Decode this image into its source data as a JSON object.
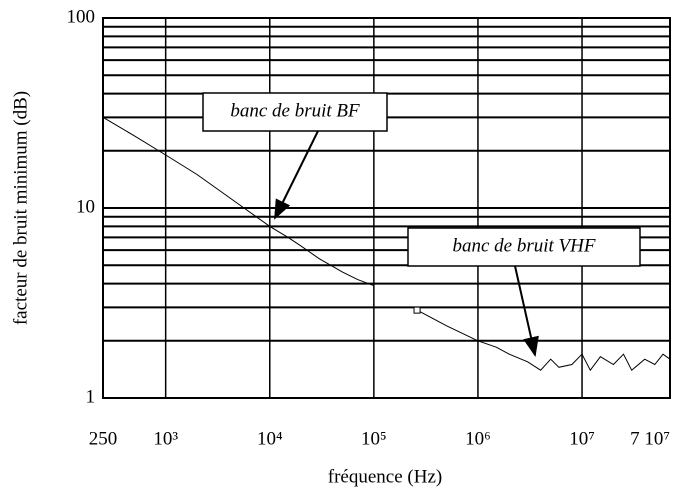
{
  "chart_data": {
    "type": "line",
    "xlabel": "fréquence (Hz)",
    "ylabel": "facteur de bruit minimum (dB)",
    "log_x": true,
    "log_y": true,
    "grid": true,
    "minor_grid_y": true,
    "xlim": [
      250,
      70000000
    ],
    "ylim": [
      1,
      100
    ],
    "xticks": [
      250,
      {
        "value": 1000,
        "label": "10³"
      },
      {
        "value": 10000,
        "label": "10⁴"
      },
      {
        "value": 100000,
        "label": "10⁵"
      },
      {
        "value": 1000000,
        "label": "10⁶"
      },
      {
        "value": 10000000,
        "label": "10⁷"
      },
      {
        "value": 70000000,
        "label": "7 10⁷"
      }
    ],
    "yticks": [
      1,
      10,
      100
    ],
    "series": [
      {
        "name": "banc de bruit BF",
        "color": "#000000",
        "x": [
          250,
          500,
          1000,
          2000,
          5000,
          10000,
          15000,
          20000,
          30000,
          50000,
          70000,
          100000
        ],
        "values": [
          30,
          24,
          19,
          15,
          10.5,
          8,
          7,
          6.3,
          5.4,
          4.6,
          4.2,
          3.9
        ]
      },
      {
        "name": "banc de bruit VHF",
        "color": "#000000",
        "x": [
          260000,
          500000,
          1000000,
          1500000,
          2000000,
          3000000,
          4000000,
          5000000,
          6000000,
          8000000,
          10000000,
          12000000,
          15000000,
          20000000,
          25000000,
          30000000,
          40000000,
          50000000,
          60000000,
          70000000
        ],
        "values": [
          2.9,
          2.4,
          2,
          1.85,
          1.7,
          1.55,
          1.4,
          1.6,
          1.45,
          1.5,
          1.7,
          1.4,
          1.65,
          1.5,
          1.7,
          1.4,
          1.6,
          1.5,
          1.7,
          1.6
        ]
      }
    ],
    "annotations": [
      "banc de bruit BF",
      "banc de bruit VHF"
    ]
  }
}
